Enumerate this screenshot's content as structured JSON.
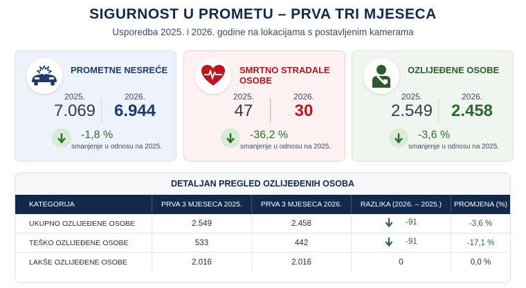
{
  "header": {
    "title": "SIGURNOST U PROMETU – PRVA TRI MJESECA",
    "subtitle": "Usporedba 2025. i 2026. godine na lokacijama s postavljenim kamerama"
  },
  "cards": [
    {
      "title": "PROMETNE NESREĆE",
      "icon": "car-crash-icon",
      "year_old": "2025.",
      "year_new": "2026.",
      "value_old": "7.069",
      "value_new": "6.944",
      "change": "-1,8 %",
      "note": "smanjenje u odnosu na 2025."
    },
    {
      "title": "SMRTNO STRADALE OSOBE",
      "icon": "heart-pulse-icon",
      "year_old": "2025.",
      "year_new": "2026.",
      "value_old": "47",
      "value_new": "30",
      "change": "-36,2 %",
      "note": "smanjenje u odnosu na 2025."
    },
    {
      "title": "OZLIJEĐENE OSOBE",
      "icon": "injured-person-icon",
      "year_old": "2025.",
      "year_new": "2026.",
      "value_old": "2.549",
      "value_new": "2.458",
      "change": "-3,6 %",
      "note": "smanjenje u odnosu na 2025."
    }
  ],
  "table": {
    "title": "DETALJAN PREGLED OZLIJEĐENIH OSOBA",
    "columns": [
      "KATEGORIJA",
      "PRVA 3 MJESECA 2025.",
      "PRVA 3 MJESECA 2026.",
      "RAZLIKA (2026. – 2025.)",
      "PROMJENA (%)"
    ],
    "rows": [
      {
        "category": "UKUPNO OZLIJEĐENE OSOBE",
        "v2025": "2.549",
        "v2026": "2.458",
        "diff": "-91",
        "pct": "-3,6 %",
        "down": true
      },
      {
        "category": "TEŠKO OZLIJEĐENE OSOBE",
        "v2025": "533",
        "v2026": "442",
        "diff": "-91",
        "pct": "-17,1 %",
        "down": true
      },
      {
        "category": "LAKŠE OZLIJEĐENE OSOBE",
        "v2025": "2.016",
        "v2026": "2.016",
        "diff": "0",
        "pct": "0,0 %",
        "down": false
      }
    ]
  },
  "colors": {
    "navy": "#13294b",
    "red": "#c0141f",
    "green": "#2b6a2c"
  }
}
